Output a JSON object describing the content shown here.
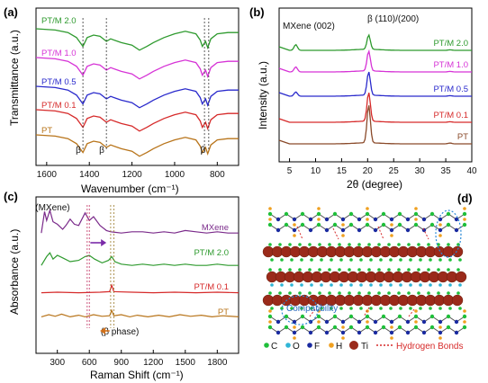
{
  "chart_data": [
    {
      "panel": "(a)",
      "type": "line",
      "xlabel": "Wavenumber (cm⁻¹)",
      "ylabel": "Transmittance (a.u.)",
      "xlim": [
        1650,
        700
      ],
      "xticks": [
        1600,
        1400,
        1200,
        1000,
        800
      ],
      "series": [
        {
          "name": "PT/M 2.0",
          "color": "#2e9a2e",
          "points": [
            [
              1650,
              2.0
            ],
            [
              1560,
              1.9
            ],
            [
              1500,
              1.7
            ],
            [
              1460,
              1.3
            ],
            [
              1430,
              0.6
            ],
            [
              1410,
              1.3
            ],
            [
              1380,
              1.5
            ],
            [
              1350,
              1.4
            ],
            [
              1320,
              1.0
            ],
            [
              1300,
              1.2
            ],
            [
              1250,
              0.9
            ],
            [
              1200,
              0.7
            ],
            [
              1165,
              0.3
            ],
            [
              1130,
              0.6
            ],
            [
              1100,
              0.9
            ],
            [
              1050,
              1.3
            ],
            [
              1000,
              1.6
            ],
            [
              950,
              1.8
            ],
            [
              900,
              1.6
            ],
            [
              880,
              1.1
            ],
            [
              870,
              0.6
            ],
            [
              855,
              1.0
            ],
            [
              845,
              0.5
            ],
            [
              830,
              1.2
            ],
            [
              800,
              1.6
            ],
            [
              750,
              1.7
            ],
            [
              700,
              1.7
            ]
          ]
        },
        {
          "name": "PT/M 1.0",
          "color": "#d633d6",
          "points": [
            [
              1650,
              2.0
            ],
            [
              1560,
              1.9
            ],
            [
              1500,
              1.7
            ],
            [
              1460,
              1.3
            ],
            [
              1430,
              0.6
            ],
            [
              1410,
              1.3
            ],
            [
              1380,
              1.5
            ],
            [
              1350,
              1.4
            ],
            [
              1320,
              1.0
            ],
            [
              1300,
              1.2
            ],
            [
              1250,
              0.9
            ],
            [
              1200,
              0.7
            ],
            [
              1165,
              0.3
            ],
            [
              1130,
              0.6
            ],
            [
              1100,
              0.9
            ],
            [
              1050,
              1.3
            ],
            [
              1000,
              1.6
            ],
            [
              950,
              1.8
            ],
            [
              900,
              1.6
            ],
            [
              880,
              1.1
            ],
            [
              870,
              0.6
            ],
            [
              855,
              1.0
            ],
            [
              845,
              0.5
            ],
            [
              830,
              1.2
            ],
            [
              800,
              1.6
            ],
            [
              750,
              1.7
            ],
            [
              700,
              1.7
            ]
          ]
        },
        {
          "name": "PT/M 0.5",
          "color": "#2a2acc",
          "points": [
            [
              1650,
              2.0
            ],
            [
              1560,
              1.9
            ],
            [
              1500,
              1.7
            ],
            [
              1460,
              1.3
            ],
            [
              1430,
              0.6
            ],
            [
              1410,
              1.3
            ],
            [
              1380,
              1.5
            ],
            [
              1350,
              1.4
            ],
            [
              1320,
              1.0
            ],
            [
              1300,
              1.2
            ],
            [
              1250,
              0.9
            ],
            [
              1200,
              0.7
            ],
            [
              1165,
              0.3
            ],
            [
              1130,
              0.6
            ],
            [
              1100,
              0.9
            ],
            [
              1050,
              1.3
            ],
            [
              1000,
              1.6
            ],
            [
              950,
              1.8
            ],
            [
              900,
              1.6
            ],
            [
              880,
              1.1
            ],
            [
              870,
              0.6
            ],
            [
              855,
              1.0
            ],
            [
              845,
              0.5
            ],
            [
              830,
              1.2
            ],
            [
              800,
              1.6
            ],
            [
              750,
              1.7
            ],
            [
              700,
              1.7
            ]
          ]
        },
        {
          "name": "PT/M 0.1",
          "color": "#d62a2a",
          "points": [
            [
              1650,
              2.0
            ],
            [
              1560,
              1.9
            ],
            [
              1500,
              1.7
            ],
            [
              1460,
              1.3
            ],
            [
              1430,
              0.6
            ],
            [
              1410,
              1.3
            ],
            [
              1380,
              1.5
            ],
            [
              1350,
              1.4
            ],
            [
              1320,
              1.0
            ],
            [
              1300,
              1.2
            ],
            [
              1250,
              0.9
            ],
            [
              1200,
              0.7
            ],
            [
              1165,
              0.3
            ],
            [
              1130,
              0.6
            ],
            [
              1100,
              0.9
            ],
            [
              1050,
              1.3
            ],
            [
              1000,
              1.6
            ],
            [
              950,
              1.8
            ],
            [
              900,
              1.6
            ],
            [
              880,
              1.1
            ],
            [
              870,
              0.6
            ],
            [
              855,
              1.0
            ],
            [
              845,
              0.5
            ],
            [
              830,
              1.2
            ],
            [
              800,
              1.6
            ],
            [
              750,
              1.7
            ],
            [
              700,
              1.7
            ]
          ]
        },
        {
          "name": "PT",
          "color": "#b8741a",
          "points": [
            [
              1650,
              2.0
            ],
            [
              1560,
              1.9
            ],
            [
              1500,
              1.7
            ],
            [
              1460,
              1.3
            ],
            [
              1430,
              0.6
            ],
            [
              1410,
              1.3
            ],
            [
              1380,
              1.5
            ],
            [
              1350,
              1.4
            ],
            [
              1320,
              1.0
            ],
            [
              1300,
              1.2
            ],
            [
              1250,
              0.9
            ],
            [
              1200,
              0.7
            ],
            [
              1165,
              0.3
            ],
            [
              1130,
              0.6
            ],
            [
              1100,
              0.9
            ],
            [
              1050,
              1.3
            ],
            [
              1000,
              1.6
            ],
            [
              950,
              1.8
            ],
            [
              900,
              1.6
            ],
            [
              880,
              1.1
            ],
            [
              870,
              0.6
            ],
            [
              855,
              1.0
            ],
            [
              845,
              0.5
            ],
            [
              830,
              1.2
            ],
            [
              800,
              1.6
            ],
            [
              750,
              1.7
            ],
            [
              700,
              1.7
            ]
          ]
        }
      ],
      "annotations": [
        {
          "text": "β",
          "x": 1430
        },
        {
          "text": "β",
          "x": 1320
        },
        {
          "text": "β",
          "x": 845
        }
      ],
      "guide_lines_x": [
        1430,
        1320,
        860,
        840
      ]
    },
    {
      "panel": "(b)",
      "type": "line",
      "xlabel": "2θ (degree)",
      "ylabel": "Intensity (a.u.)",
      "xlim": [
        3,
        40
      ],
      "xticks": [
        5,
        10,
        15,
        20,
        25,
        30,
        35,
        40
      ],
      "series": [
        {
          "name": "PT/M 2.0",
          "color": "#2e9a2e",
          "mxene": 1.6,
          "beta": 1.6
        },
        {
          "name": "PT/M 1.0",
          "color": "#d633d6",
          "mxene": 1.4,
          "beta": 2.2
        },
        {
          "name": "PT/M 0.5",
          "color": "#2a2acc",
          "mxene": 1.2,
          "beta": 2.6
        },
        {
          "name": "PT/M 0.1",
          "color": "#d62a2a",
          "mxene": 0.0,
          "beta": 3.2
        },
        {
          "name": "PT",
          "color": "#8a4a2a",
          "mxene": 0.0,
          "beta": 4.2
        }
      ],
      "peaks": [
        {
          "label": "MXene (002)",
          "x": 6.2
        },
        {
          "label": "β (110)/(200)",
          "x": 20.2
        }
      ]
    },
    {
      "panel": "(c)",
      "type": "line",
      "xlabel": "Raman Shift (cm⁻¹)",
      "ylabel": "Absorbance (a.u.)",
      "xlim": [
        100,
        2000
      ],
      "xticks": [
        300,
        600,
        900,
        1200,
        1500,
        1800
      ],
      "series": [
        {
          "name": "MXene",
          "color": "#7a2a8a",
          "points": [
            [
              150,
              0.2
            ],
            [
              180,
              1.9
            ],
            [
              200,
              1.2
            ],
            [
              230,
              2.0
            ],
            [
              260,
              1.1
            ],
            [
              300,
              0.9
            ],
            [
              350,
              0.5
            ],
            [
              380,
              0.8
            ],
            [
              420,
              1.3
            ],
            [
              460,
              0.9
            ],
            [
              500,
              0.8
            ],
            [
              560,
              1.8
            ],
            [
              600,
              1.2
            ],
            [
              640,
              1.5
            ],
            [
              700,
              0.8
            ],
            [
              760,
              0.4
            ],
            [
              800,
              0.3
            ],
            [
              900,
              0.2
            ],
            [
              1000,
              0.3
            ],
            [
              1100,
              0.3
            ],
            [
              1200,
              0.2
            ],
            [
              1300,
              0.3
            ],
            [
              1400,
              0.2
            ],
            [
              1500,
              0.4
            ],
            [
              1600,
              0.3
            ],
            [
              1700,
              0.2
            ],
            [
              1800,
              0.3
            ],
            [
              1900,
              0.2
            ],
            [
              2000,
              0.2
            ]
          ]
        },
        {
          "name": "PT/M 2.0",
          "color": "#2e9a2e",
          "points": [
            [
              150,
              0.2
            ],
            [
              200,
              0.9
            ],
            [
              230,
              1.2
            ],
            [
              260,
              0.7
            ],
            [
              300,
              1.0
            ],
            [
              350,
              0.8
            ],
            [
              420,
              0.5
            ],
            [
              500,
              0.6
            ],
            [
              560,
              0.9
            ],
            [
              600,
              1.0
            ],
            [
              650,
              0.7
            ],
            [
              720,
              0.4
            ],
            [
              780,
              0.6
            ],
            [
              810,
              0.9
            ],
            [
              840,
              0.5
            ],
            [
              900,
              0.3
            ],
            [
              1000,
              0.2
            ],
            [
              1100,
              0.3
            ],
            [
              1200,
              0.2
            ],
            [
              1300,
              0.3
            ],
            [
              1400,
              0.2
            ],
            [
              1500,
              0.3
            ],
            [
              1600,
              0.2
            ],
            [
              1700,
              0.2
            ],
            [
              1800,
              0.3
            ],
            [
              1900,
              0.2
            ],
            [
              2000,
              0.2
            ]
          ]
        },
        {
          "name": "PT/M 0.1",
          "color": "#d62a2a",
          "points": [
            [
              150,
              0.2
            ],
            [
              300,
              0.25
            ],
            [
              500,
              0.2
            ],
            [
              700,
              0.25
            ],
            [
              790,
              0.3
            ],
            [
              810,
              0.9
            ],
            [
              830,
              0.3
            ],
            [
              1000,
              0.25
            ],
            [
              1200,
              0.2
            ],
            [
              1400,
              0.25
            ],
            [
              1600,
              0.2
            ],
            [
              1800,
              0.25
            ],
            [
              2000,
              0.2
            ]
          ]
        },
        {
          "name": "PT",
          "color": "#b8741a",
          "points": [
            [
              150,
              0.3
            ],
            [
              220,
              0.5
            ],
            [
              280,
              0.35
            ],
            [
              340,
              0.55
            ],
            [
              420,
              0.3
            ],
            [
              500,
              0.45
            ],
            [
              560,
              0.3
            ],
            [
              640,
              0.5
            ],
            [
              720,
              0.35
            ],
            [
              790,
              0.4
            ],
            [
              810,
              0.9
            ],
            [
              830,
              0.4
            ],
            [
              900,
              0.5
            ],
            [
              980,
              0.3
            ],
            [
              1050,
              0.45
            ],
            [
              1150,
              0.3
            ],
            [
              1250,
              0.45
            ],
            [
              1350,
              0.3
            ],
            [
              1450,
              0.5
            ],
            [
              1550,
              0.35
            ],
            [
              1650,
              0.45
            ],
            [
              1750,
              0.3
            ],
            [
              1850,
              0.4
            ],
            [
              2000,
              0.3
            ]
          ]
        }
      ],
      "annotations": [
        {
          "text": "(MXene)",
          "x": 330
        },
        {
          "text": "(β phase)",
          "x": 910
        }
      ],
      "guide_lines_x": [
        580,
        600,
        800,
        830
      ]
    }
  ],
  "panel_d": {
    "label": "(d)",
    "compatibility": "Compatibility",
    "legend": [
      {
        "symbol": "C",
        "color": "#1fbf3a"
      },
      {
        "symbol": "O",
        "color": "#2fb5d6"
      },
      {
        "symbol": "F",
        "color": "#1a2aa0"
      },
      {
        "symbol": "H",
        "color": "#f0a020"
      },
      {
        "symbol": "Ti",
        "color": "#9a2a1a"
      },
      {
        "symbol": "Hydrogen Bonds",
        "color": "#d62a2a"
      }
    ]
  }
}
